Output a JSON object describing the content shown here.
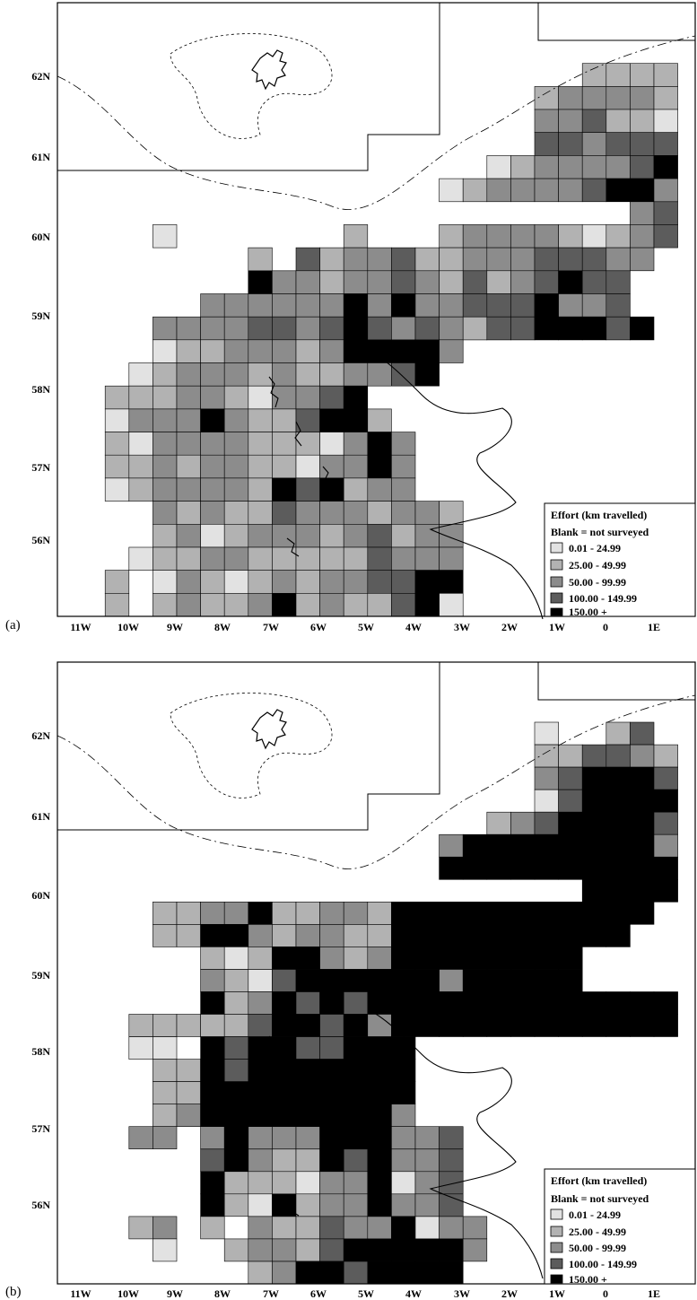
{
  "panels": [
    {
      "id": "a",
      "label": "(a)",
      "lat_labels": [
        "62N",
        "61N",
        "60N",
        "59N",
        "58N",
        "57N",
        "56N"
      ],
      "lon_labels": [
        "11W",
        "10W",
        "9W",
        "8W",
        "7W",
        "6W",
        "5W",
        "4W",
        "3W",
        "2W",
        "1W",
        "0",
        "1E"
      ],
      "legend": {
        "title": "Effort (km travelled)",
        "subtitle": "Blank = not surveyed",
        "classes": [
          "0.01 - 24.99",
          "25.00 - 49.99",
          "50.00 - 99.99",
          "100.00 - 149.99",
          "150.00 +"
        ]
      }
    },
    {
      "id": "b",
      "label": "(b)",
      "lat_labels": [
        "62N",
        "61N",
        "60N",
        "59N",
        "58N",
        "57N",
        "56N"
      ],
      "lon_labels": [
        "11W",
        "10W",
        "9W",
        "8W",
        "7W",
        "6W",
        "5W",
        "4W",
        "3W",
        "2W",
        "1W",
        "0",
        "1E"
      ],
      "legend": {
        "title": "Effort (km travelled)",
        "subtitle": "Blank = not surveyed",
        "classes": [
          "0.01 - 24.99",
          "25.00 - 49.99",
          "50.00 - 99.99",
          "100.00 - 149.99",
          "150.00 +"
        ]
      }
    }
  ],
  "colors": {
    "class_fills": [
      "#e2e2e2",
      "#b2b2b2",
      "#8c8c8c",
      "#5c5c5c",
      "#000000"
    ],
    "frame": "#000000",
    "land_outline": "#000000",
    "background": "#ffffff"
  }
}
